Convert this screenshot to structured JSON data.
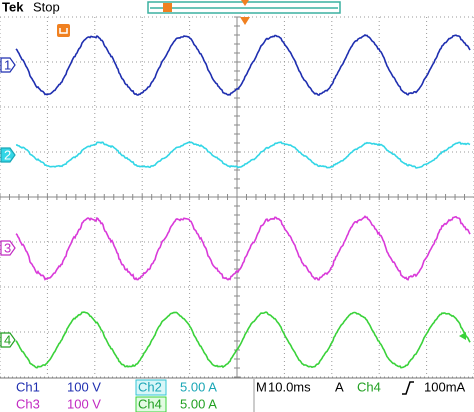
{
  "header": {
    "brand": "Tek",
    "status": "Stop"
  },
  "channel_markers": [
    "1",
    "2",
    "3",
    "4"
  ],
  "readouts": {
    "row1": [
      {
        "label": "Ch1",
        "value": "100 V"
      },
      {
        "label": "Ch2",
        "value": "5.00 A"
      }
    ],
    "row2": [
      {
        "label": "Ch3",
        "value": "100 V"
      },
      {
        "label": "Ch4",
        "value": "5.00 A"
      }
    ]
  },
  "timebase": {
    "label": "M",
    "value": "10.0ms"
  },
  "trigger": {
    "mode": "A",
    "source": "Ch4",
    "level": "100mA"
  }
}
